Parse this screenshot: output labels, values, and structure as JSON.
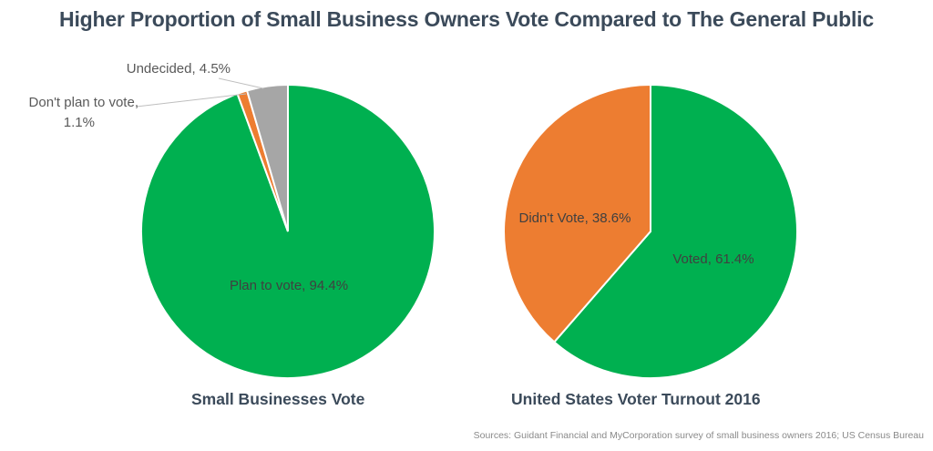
{
  "title": "Higher Proportion of Small Business Owners Vote Compared to The General Public",
  "source": "Sources: Guidant Financial and MyCorporation survey of small business owners 2016; US Census Bureau",
  "chart_data": [
    {
      "type": "pie",
      "title": "Small Businesses Vote",
      "slices": [
        {
          "label": "Plan to vote, 94.4%",
          "name": "Plan to vote",
          "value": 94.4,
          "color": "#00b050"
        },
        {
          "label": "Don't plan to vote,",
          "label2": "1.1%",
          "name": "Don't plan to vote",
          "value": 1.1,
          "color": "#ed7d31"
        },
        {
          "label": "Undecided, 4.5%",
          "name": "Undecided",
          "value": 4.5,
          "color": "#a6a6a6"
        }
      ]
    },
    {
      "type": "pie",
      "title": "United States Voter Turnout 2016",
      "slices": [
        {
          "label": "Voted, 61.4%",
          "name": "Voted",
          "value": 61.4,
          "color": "#00b050"
        },
        {
          "label": "Didn't Vote, 38.6%",
          "name": "Didn't Vote",
          "value": 38.6,
          "color": "#ed7d31"
        }
      ]
    }
  ]
}
